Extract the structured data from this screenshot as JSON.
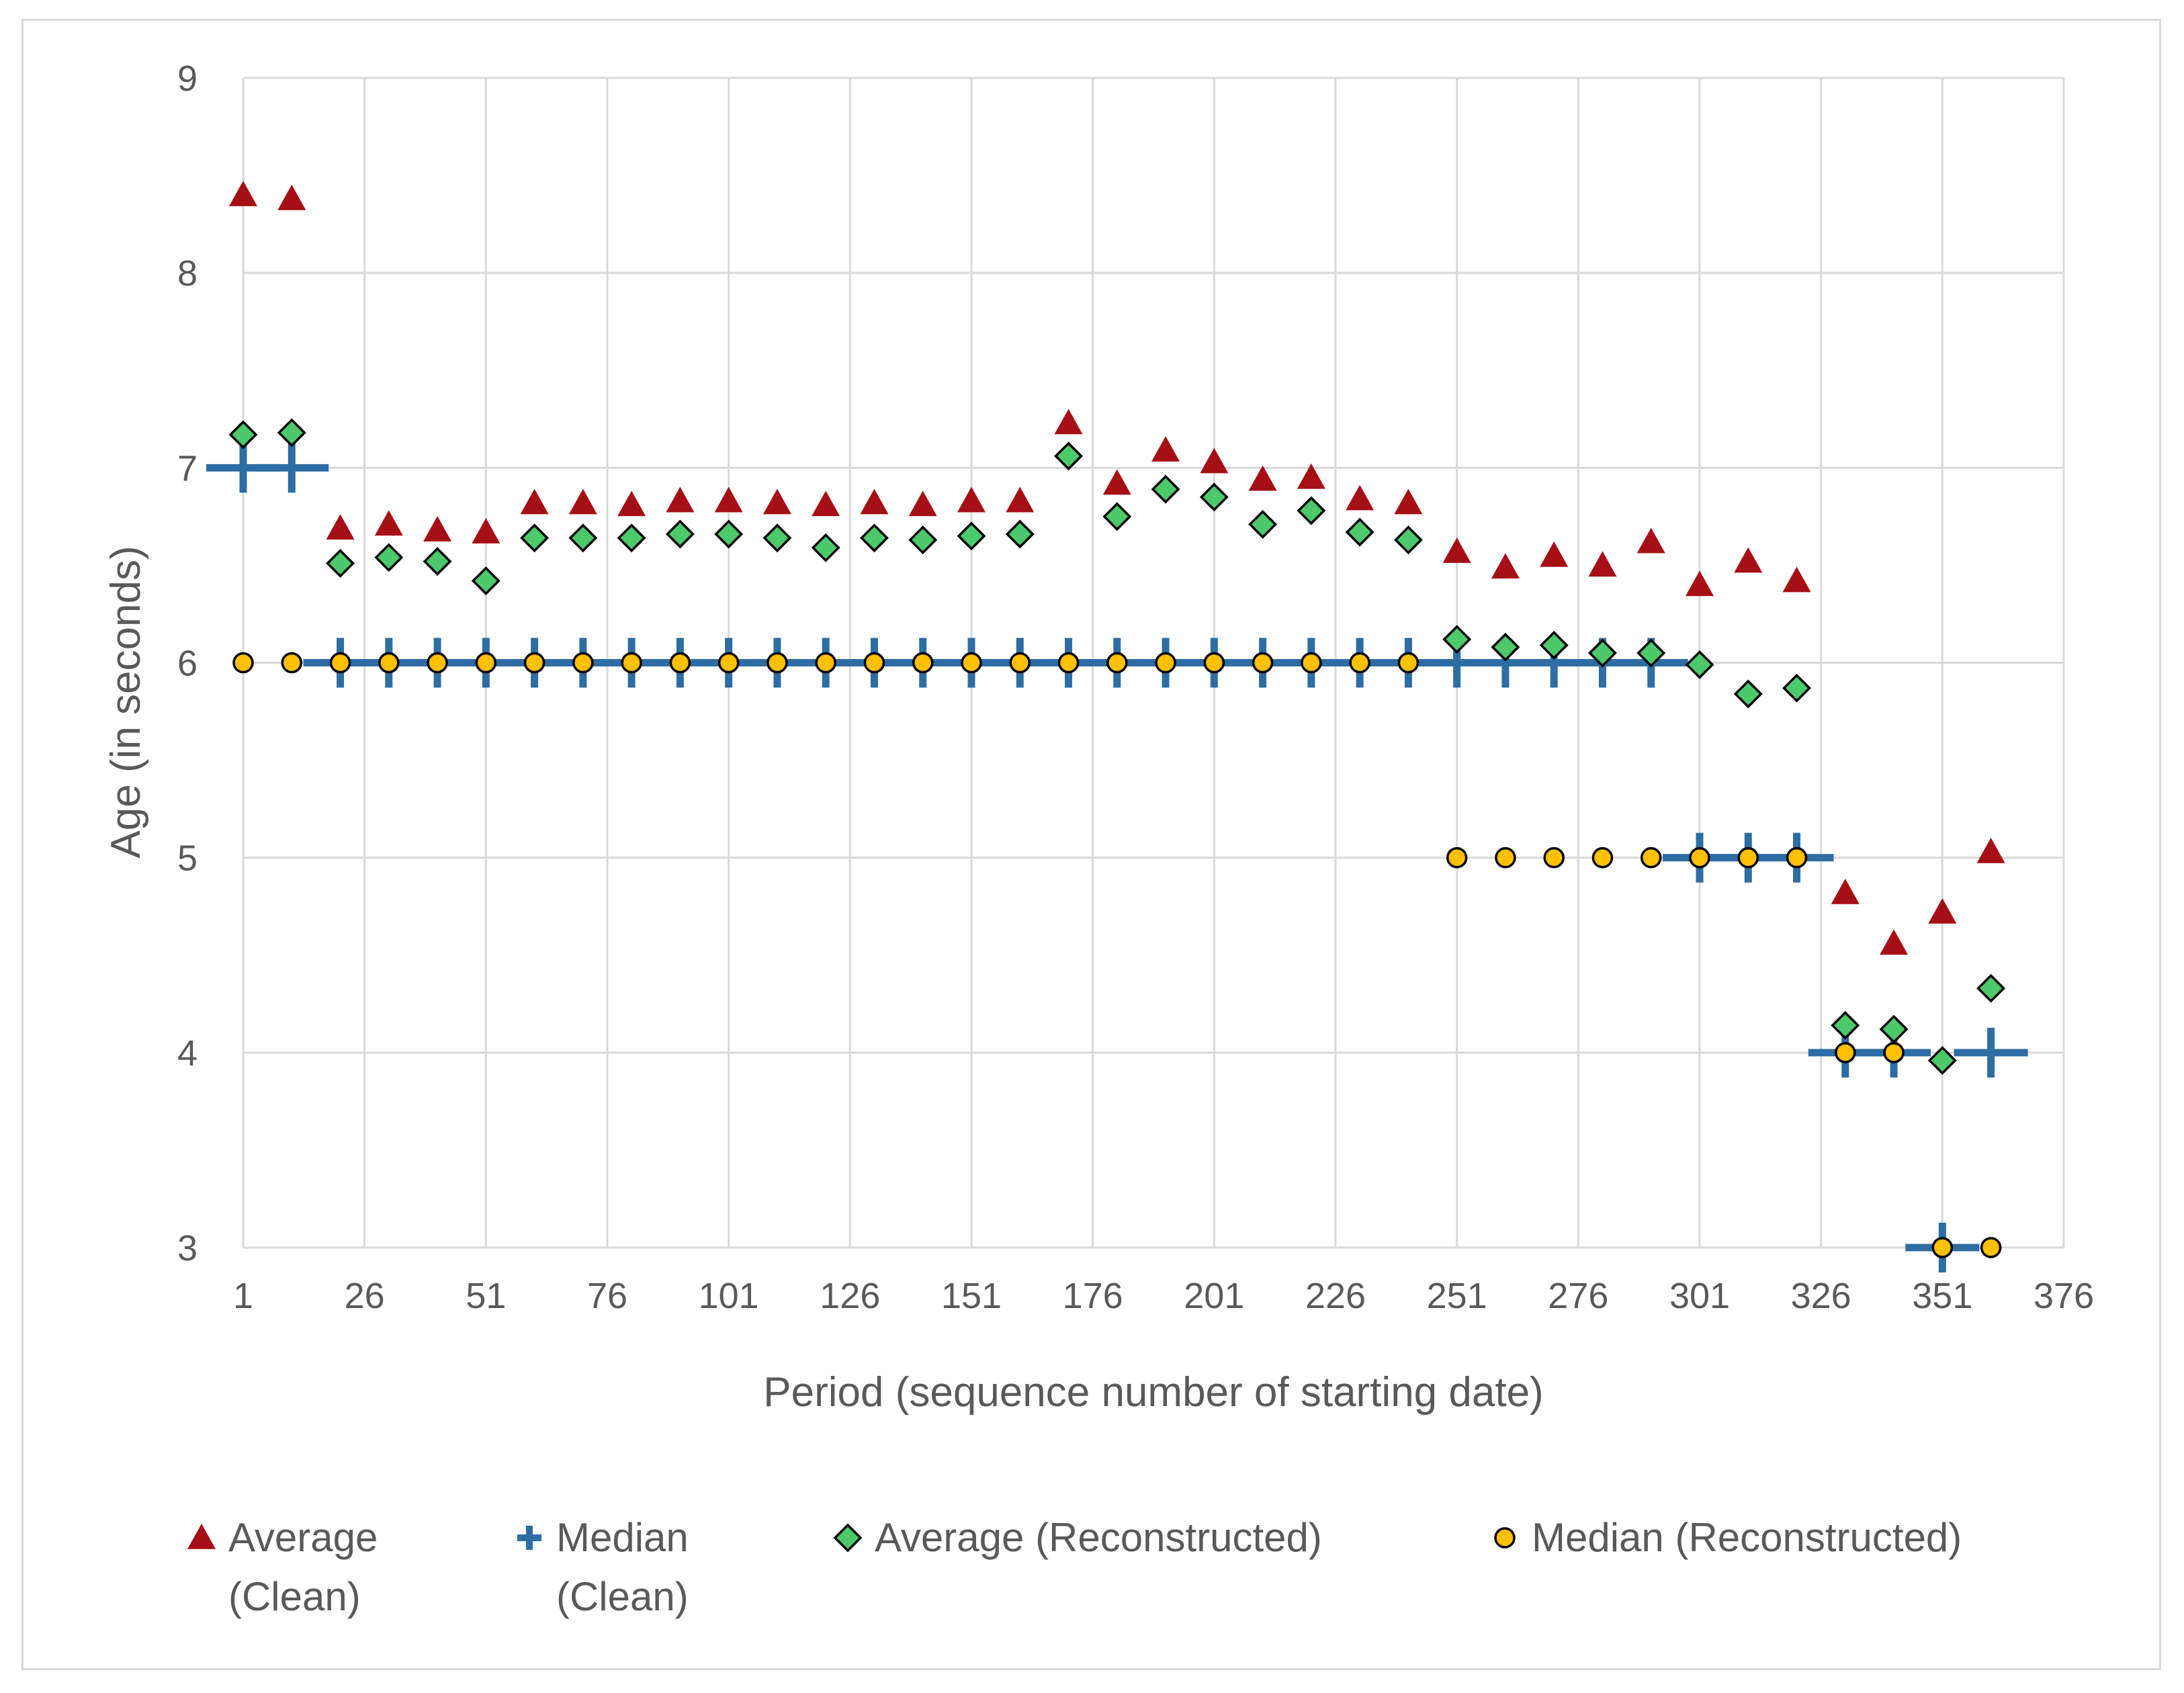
{
  "chart_data": {
    "type": "scatter",
    "title": "",
    "xlabel": "Period (sequence number of starting date)",
    "ylabel": "Age (in seconds)",
    "xlim": [
      1,
      376
    ],
    "ylim": [
      3,
      9
    ],
    "x_ticks": [
      1,
      26,
      51,
      76,
      101,
      126,
      151,
      176,
      201,
      226,
      251,
      276,
      301,
      326,
      351,
      376
    ],
    "y_ticks": [
      3,
      4,
      5,
      6,
      7,
      8,
      9
    ],
    "x_tick_labels": [
      "1",
      "26",
      "51",
      "76",
      "101",
      "126",
      "151",
      "176",
      "201",
      "226",
      "251",
      "276",
      "301",
      "326",
      "351",
      "376"
    ],
    "y_tick_labels": [
      "3",
      "4",
      "5",
      "6",
      "7",
      "8",
      "9"
    ],
    "grid": true,
    "legend_position": "bottom",
    "x": [
      1,
      11,
      21,
      31,
      41,
      51,
      61,
      71,
      81,
      91,
      101,
      111,
      121,
      131,
      141,
      151,
      161,
      171,
      181,
      191,
      201,
      211,
      221,
      231,
      241,
      251,
      261,
      271,
      281,
      291,
      301,
      311,
      321,
      331,
      341,
      351,
      361
    ],
    "series": [
      {
        "name": "Average (Clean)",
        "legend_lines": [
          "Average",
          "(Clean)"
        ],
        "marker": "triangle",
        "color": "#a50f15",
        "values": [
          8.4,
          8.38,
          6.69,
          6.71,
          6.68,
          6.67,
          6.82,
          6.82,
          6.81,
          6.83,
          6.83,
          6.82,
          6.81,
          6.82,
          6.81,
          6.83,
          6.83,
          7.23,
          6.92,
          7.09,
          7.03,
          6.94,
          6.95,
          6.84,
          6.82,
          6.57,
          6.49,
          6.55,
          6.5,
          6.62,
          6.4,
          6.52,
          6.42,
          4.82,
          4.56,
          4.72,
          5.03
        ]
      },
      {
        "name": "Median (Clean)",
        "legend_lines": [
          "Median",
          "(Clean)"
        ],
        "marker": "plus",
        "color": "#2e6da4",
        "values": [
          7,
          7,
          6,
          6,
          6,
          6,
          6,
          6,
          6,
          6,
          6,
          6,
          6,
          6,
          6,
          6,
          6,
          6,
          6,
          6,
          6,
          6,
          6,
          6,
          6,
          6,
          6,
          6,
          6,
          6,
          5,
          5,
          5,
          4,
          4,
          3,
          4
        ]
      },
      {
        "name": "Average (Reconstructed)",
        "legend_lines": [
          "Average (Reconstructed)"
        ],
        "marker": "diamond",
        "color": "#4cc96a",
        "values": [
          7.17,
          7.18,
          6.51,
          6.54,
          6.52,
          6.42,
          6.64,
          6.64,
          6.64,
          6.66,
          6.66,
          6.64,
          6.59,
          6.64,
          6.63,
          6.65,
          6.66,
          7.06,
          6.75,
          6.89,
          6.85,
          6.71,
          6.78,
          6.67,
          6.63,
          6.12,
          6.08,
          6.09,
          6.05,
          6.05,
          5.99,
          5.84,
          5.87,
          4.14,
          4.12,
          3.96,
          4.33
        ]
      },
      {
        "name": "Median (Reconstructed)",
        "legend_lines": [
          "Median (Reconstructed)"
        ],
        "marker": "circle",
        "color": "#ffc000",
        "values": [
          6,
          6,
          6,
          6,
          6,
          6,
          6,
          6,
          6,
          6,
          6,
          6,
          6,
          6,
          6,
          6,
          6,
          6,
          6,
          6,
          6,
          6,
          6,
          6,
          6,
          5,
          5,
          5,
          5,
          5,
          5,
          5,
          5,
          4,
          4,
          3,
          3
        ]
      }
    ]
  }
}
